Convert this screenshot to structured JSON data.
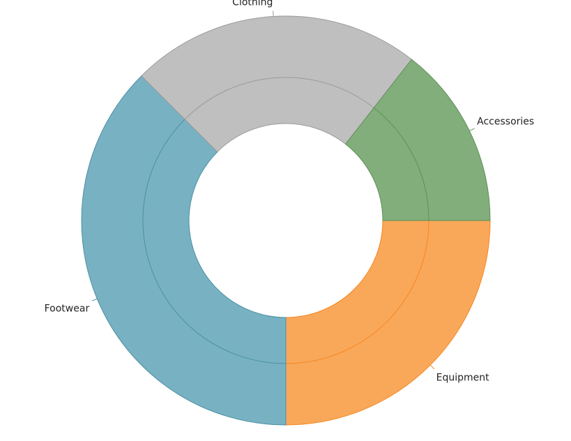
{
  "chart_data": {
    "type": "pie",
    "variant": "donut",
    "title": "",
    "series": [
      {
        "name": "Equipment",
        "value": 0.25,
        "color": "#f9a85a",
        "stroke": "#f5861f"
      },
      {
        "name": "Footwear",
        "value": 0.375,
        "color": "#78b2c2",
        "stroke": "#4a8fa3"
      },
      {
        "name": "Clothing",
        "value": 0.2306,
        "color": "#bfbfbf",
        "stroke": "#9a9a9a"
      },
      {
        "name": "Accessories",
        "value": 0.1444,
        "color": "#82ae7b",
        "stroke": "#5f8f58"
      }
    ],
    "start_angle_deg": 0,
    "direction": "clockwise",
    "legend": "none",
    "data_labels": "category name, outside with leader lines"
  }
}
